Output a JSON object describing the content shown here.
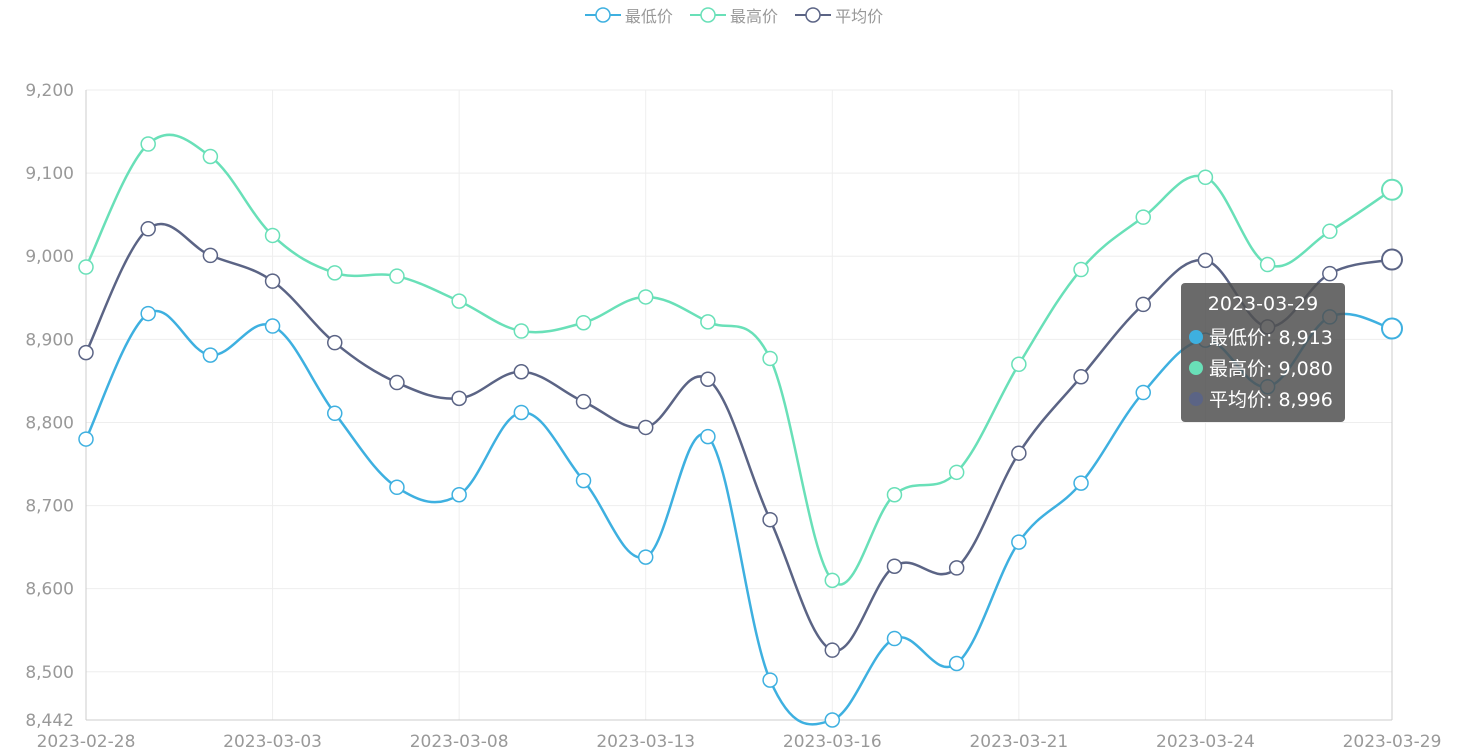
{
  "legend": [
    {
      "name": "最低价",
      "color": "#3eb0e0"
    },
    {
      "name": "最高价",
      "color": "#69e0b8"
    },
    {
      "name": "平均价",
      "color": "#5b6485"
    }
  ],
  "tooltip": {
    "date": "2023-03-29",
    "rows": [
      {
        "label": "最低价: 8,913",
        "color": "#3eb0e0"
      },
      {
        "label": "最高价: 9,080",
        "color": "#69e0b8"
      },
      {
        "label": "平均价: 8,996",
        "color": "#5b6485"
      }
    ]
  },
  "chart_data": {
    "type": "line",
    "smooth": true,
    "x": [
      "2023-02-28",
      "2023-03-01",
      "2023-03-02",
      "2023-03-03",
      "2023-03-06",
      "2023-03-07",
      "2023-03-08",
      "2023-03-09",
      "2023-03-10",
      "2023-03-13",
      "2023-03-14",
      "2023-03-15",
      "2023-03-16",
      "2023-03-17",
      "2023-03-20",
      "2023-03-21",
      "2023-03-22",
      "2023-03-23",
      "2023-03-24",
      "2023-03-27",
      "2023-03-28",
      "2023-03-29"
    ],
    "x_tick_labels": [
      "2023-02-28",
      "2023-03-03",
      "2023-03-08",
      "2023-03-13",
      "2023-03-16",
      "2023-03-21",
      "2023-03-24",
      "2023-03-29"
    ],
    "x_tick_index": [
      0,
      3,
      6,
      9,
      12,
      15,
      18,
      21
    ],
    "y_ticks": [
      8442,
      8500,
      8600,
      8700,
      8800,
      8900,
      9000,
      9100,
      9200
    ],
    "y_tick_labels": [
      "8,442",
      "8,500",
      "8,600",
      "8,700",
      "8,800",
      "8,900",
      "9,000",
      "9,100",
      "9,200"
    ],
    "ylim": [
      8442,
      9200
    ],
    "grid": true,
    "legend_position": "top-center",
    "highlight_index": 21,
    "series": [
      {
        "name": "最低价",
        "color": "#3eb0e0",
        "values": [
          8780,
          8931,
          8881,
          8916,
          8811,
          8722,
          8713,
          8812,
          8730,
          8638,
          8783,
          8490,
          8442,
          8540,
          8510,
          8656,
          8727,
          8836,
          8899,
          8843,
          8927,
          8913
        ]
      },
      {
        "name": "最高价",
        "color": "#69e0b8",
        "values": [
          8987,
          9135,
          9120,
          9025,
          8980,
          8976,
          8946,
          8910,
          8920,
          8951,
          8921,
          8877,
          8610,
          8713,
          8740,
          8870,
          8984,
          9047,
          9095,
          8990,
          9030,
          9080
        ]
      },
      {
        "name": "平均价",
        "color": "#5b6485",
        "values": [
          8884,
          9033,
          9001,
          8970,
          8896,
          8848,
          8829,
          8861,
          8825,
          8794,
          8852,
          8683,
          8526,
          8627,
          8625,
          8763,
          8855,
          8942,
          8995,
          8915,
          8979,
          8996
        ]
      }
    ]
  }
}
